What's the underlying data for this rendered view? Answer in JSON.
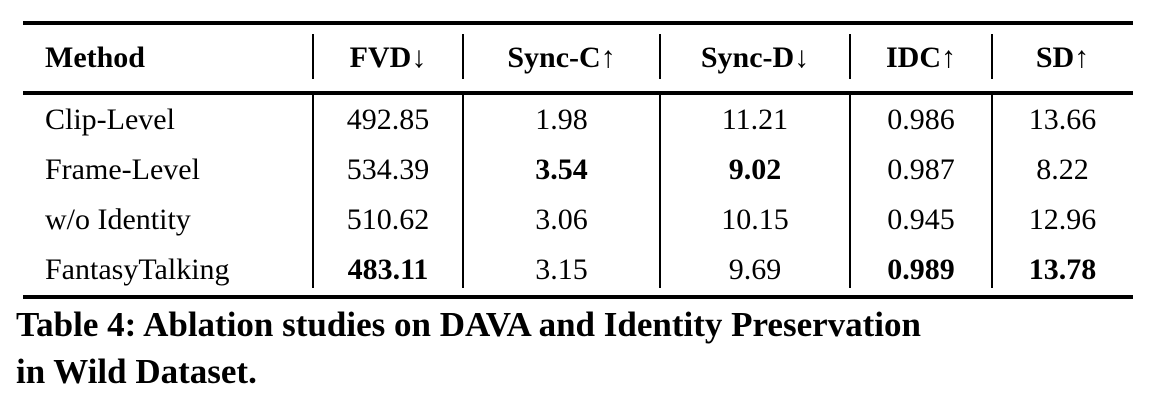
{
  "colors": {
    "text": "#000000",
    "rule": "#000000",
    "background": "#ffffff"
  },
  "table": {
    "columns": [
      "Method",
      "FVD↓",
      "Sync-C↑",
      "Sync-D↓",
      "IDC↑",
      "SD↑"
    ],
    "rows": [
      {
        "method": "Clip-Level",
        "fvd": "492.85",
        "sync_c": "1.98",
        "sync_d": "11.21",
        "idc": "0.986",
        "sd": "13.66"
      },
      {
        "method": "Frame-Level",
        "fvd": "534.39",
        "sync_c": "3.54",
        "sync_d": "9.02",
        "idc": "0.987",
        "sd": "8.22"
      },
      {
        "method": "w/o Identity",
        "fvd": "510.62",
        "sync_c": "3.06",
        "sync_d": "10.15",
        "idc": "0.945",
        "sd": "12.96"
      },
      {
        "method": "FantasyTalking",
        "fvd": "483.11",
        "sync_c": "3.15",
        "sync_d": "9.69",
        "idc": "0.989",
        "sd": "13.78"
      }
    ]
  },
  "caption": {
    "line1": "Table 4: Ablation studies on DAVA and Identity Preservation",
    "line2": "in Wild Dataset."
  }
}
